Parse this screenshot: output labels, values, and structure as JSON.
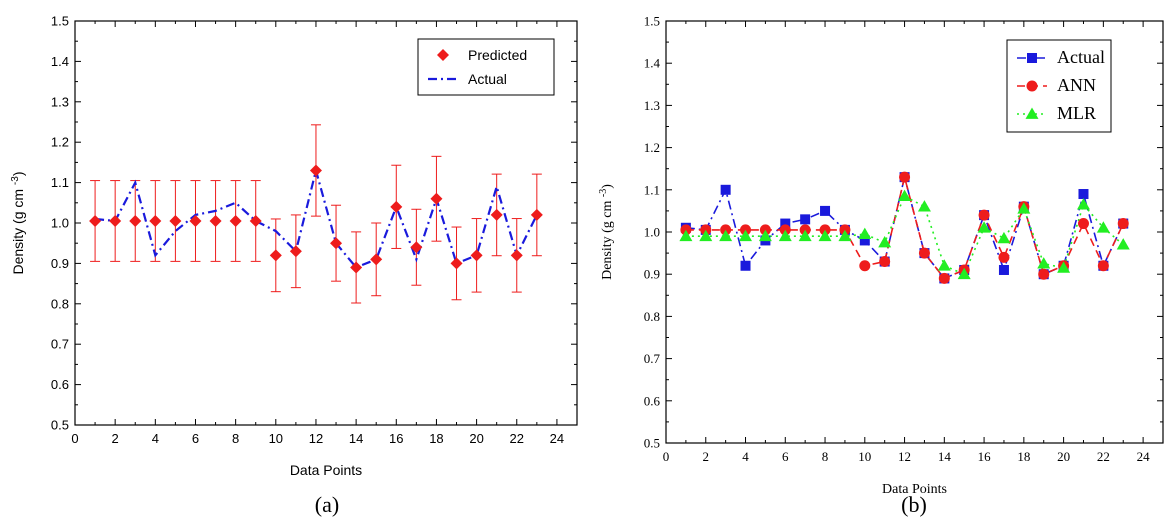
{
  "chart_data": [
    {
      "type": "scatter",
      "panel_label": "(a)",
      "xlabel": "Data Points",
      "ylabel": "Density (g cm",
      "ylabel_sup": "-3",
      "ylabel_end": ")",
      "xlim": [
        0,
        25
      ],
      "ylim": [
        0.5,
        1.5
      ],
      "x_ticks": [
        0,
        2,
        4,
        6,
        8,
        10,
        12,
        14,
        16,
        18,
        20,
        22,
        24
      ],
      "y_ticks": [
        0.5,
        0.6,
        0.7,
        0.8,
        0.9,
        1.0,
        1.1,
        1.2,
        1.3,
        1.4,
        1.5
      ],
      "legend_position": "top-right",
      "x": [
        1,
        2,
        3,
        4,
        5,
        6,
        7,
        8,
        9,
        10,
        11,
        12,
        13,
        14,
        15,
        16,
        17,
        18,
        19,
        20,
        21,
        22,
        23
      ],
      "series": [
        {
          "name": "Predicted",
          "style": "marker",
          "marker": "diamond",
          "color": "#ee1c1c",
          "values": [
            1.005,
            1.005,
            1.005,
            1.005,
            1.005,
            1.005,
            1.005,
            1.005,
            1.005,
            0.92,
            0.93,
            1.13,
            0.95,
            0.89,
            0.91,
            1.04,
            0.94,
            1.06,
            0.9,
            0.92,
            1.02,
            0.92,
            1.02
          ],
          "errors": [
            0.1,
            0.1,
            0.1,
            0.1,
            0.1,
            0.1,
            0.1,
            0.1,
            0.1,
            0.09,
            0.09,
            0.113,
            0.094,
            0.088,
            0.09,
            0.103,
            0.094,
            0.105,
            0.09,
            0.091,
            0.101,
            0.091,
            0.101
          ]
        },
        {
          "name": "Actual",
          "style": "dashdot-line",
          "color": "#1a1adc",
          "values": [
            1.01,
            1.005,
            1.1,
            0.92,
            0.98,
            1.02,
            1.03,
            1.05,
            1.005,
            0.98,
            0.93,
            1.13,
            0.95,
            0.89,
            0.91,
            1.04,
            0.91,
            1.06,
            0.9,
            0.92,
            1.09,
            0.92,
            1.02
          ]
        }
      ]
    },
    {
      "type": "line",
      "panel_label": "(b)",
      "xlabel": "Data Points",
      "ylabel": "Density (g cm",
      "ylabel_sup": "-3",
      "ylabel_end": ")",
      "xlim": [
        0,
        25
      ],
      "ylim": [
        0.5,
        1.5
      ],
      "x_ticks": [
        0,
        2,
        4,
        6,
        8,
        10,
        12,
        14,
        16,
        18,
        20,
        22,
        24
      ],
      "y_ticks": [
        0.5,
        0.6,
        0.7,
        0.8,
        0.9,
        1.0,
        1.1,
        1.2,
        1.3,
        1.4,
        1.5
      ],
      "legend_position": "top-right",
      "x": [
        1,
        2,
        3,
        4,
        5,
        6,
        7,
        8,
        9,
        10,
        11,
        12,
        13,
        14,
        15,
        16,
        17,
        18,
        19,
        20,
        21,
        22,
        23
      ],
      "series": [
        {
          "name": "Actual",
          "marker": "square",
          "dash": "dashdot",
          "color": "#1a1adc",
          "values": [
            1.01,
            1.005,
            1.1,
            0.92,
            0.98,
            1.02,
            1.03,
            1.05,
            1.005,
            0.98,
            0.93,
            1.13,
            0.95,
            0.89,
            0.91,
            1.04,
            0.91,
            1.06,
            0.9,
            0.92,
            1.09,
            0.92,
            1.02
          ]
        },
        {
          "name": "ANN",
          "marker": "circle",
          "dash": "dashed",
          "color": "#ee1c1c",
          "values": [
            1.005,
            1.005,
            1.005,
            1.005,
            1.005,
            1.005,
            1.005,
            1.005,
            1.005,
            0.92,
            0.93,
            1.13,
            0.95,
            0.89,
            0.91,
            1.04,
            0.94,
            1.06,
            0.9,
            0.92,
            1.02,
            0.92,
            1.02
          ]
        },
        {
          "name": "MLR",
          "marker": "triangle",
          "dash": "dotted",
          "color": "#22ee22",
          "values": [
            0.99,
            0.99,
            0.99,
            0.99,
            0.99,
            0.99,
            0.99,
            0.99,
            0.99,
            0.995,
            0.975,
            1.085,
            1.06,
            0.92,
            0.9,
            1.01,
            0.985,
            1.055,
            0.925,
            0.915,
            1.065,
            1.01,
            0.97
          ]
        }
      ]
    }
  ]
}
